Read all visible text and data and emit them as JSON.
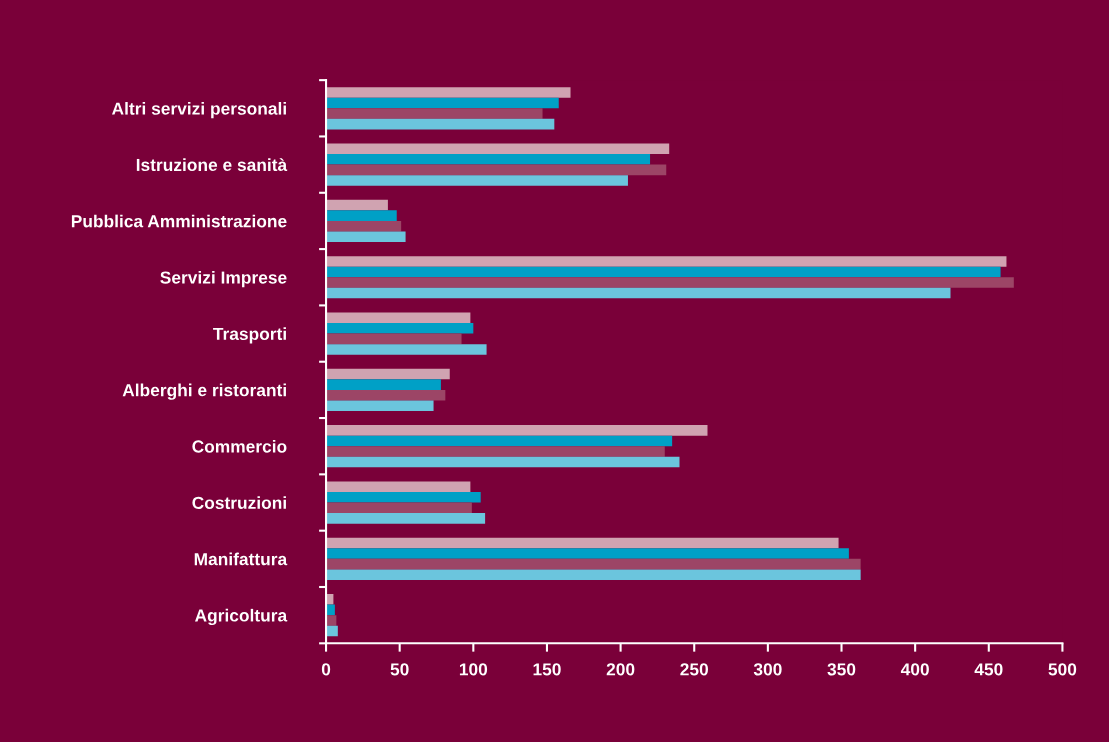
{
  "chart_data": {
    "type": "bar",
    "orientation": "horizontal",
    "categories": [
      "Altri servizi personali",
      "Istruzione e sanità",
      "Pubblica Amministrazione",
      "Servizi Imprese",
      "Trasporti",
      "Alberghi e ristoranti",
      "Commercio",
      "Costruzioni",
      "Manifattura",
      "Agricoltura"
    ],
    "series": [
      {
        "color": "#d0a3b1",
        "values": [
          166,
          233,
          42,
          462,
          98,
          84,
          259,
          98,
          348,
          5
        ]
      },
      {
        "color": "#00a0c6",
        "values": [
          158,
          220,
          48,
          458,
          100,
          78,
          235,
          105,
          355,
          6
        ]
      },
      {
        "color": "#9c4566",
        "values": [
          147,
          231,
          51,
          467,
          92,
          81,
          230,
          99,
          363,
          7
        ]
      },
      {
        "color": "#6bc5dd",
        "values": [
          155,
          205,
          54,
          424,
          109,
          73,
          240,
          108,
          363,
          8
        ]
      }
    ],
    "xlim": [
      0,
      500
    ],
    "xticks": [
      0,
      50,
      100,
      150,
      200,
      250,
      300,
      350,
      400,
      450,
      500
    ]
  }
}
